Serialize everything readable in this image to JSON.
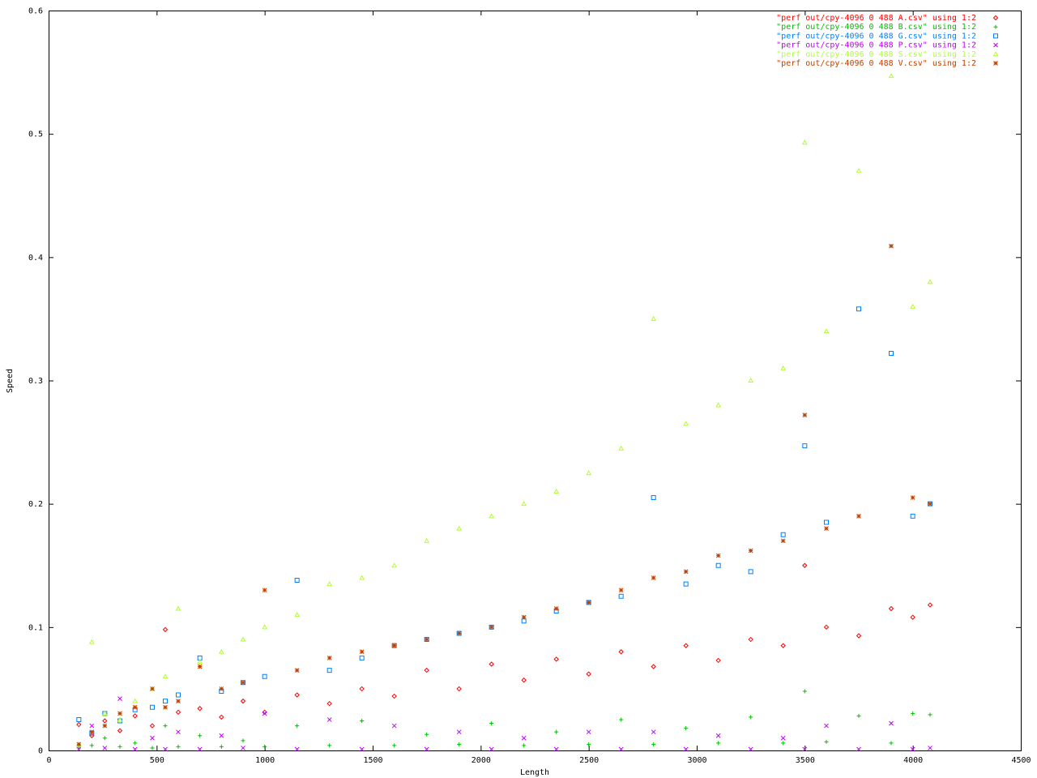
{
  "chart_data": {
    "type": "scatter",
    "xlabel": "Length",
    "ylabel": "Speed",
    "xlim": [
      0,
      4500
    ],
    "xticks": [
      0,
      500,
      1000,
      1500,
      2000,
      2500,
      3000,
      3500,
      4000,
      4500
    ],
    "ylim": [
      0,
      0.6
    ],
    "yticks": [
      0,
      0.1,
      0.2,
      0.3,
      0.4,
      0.5,
      0.6
    ],
    "legend": "top-right",
    "x": [
      140,
      200,
      260,
      330,
      400,
      480,
      540,
      600,
      700,
      800,
      900,
      1000,
      1150,
      1300,
      1450,
      1600,
      1750,
      1900,
      2050,
      2200,
      2350,
      2500,
      2650,
      2800,
      2950,
      3100,
      3250,
      3400,
      3500,
      3600,
      3750,
      3900,
      4000,
      4080
    ],
    "series": [
      {
        "name": "\"perf out/cpy-4096 0 488 A.csv\" using 1:2",
        "color": "#ff0000",
        "marker": "diamond",
        "values": [
          0.021,
          0.012,
          0.024,
          0.016,
          0.028,
          0.02,
          0.098,
          0.031,
          0.034,
          0.027,
          0.04,
          0.031,
          0.045,
          0.038,
          0.05,
          0.044,
          0.065,
          0.05,
          0.07,
          0.057,
          0.074,
          0.062,
          0.08,
          0.068,
          0.085,
          0.073,
          0.09,
          0.085,
          0.15,
          0.1,
          0.093,
          0.115,
          0.108,
          0.118
        ]
      },
      {
        "name": "\"perf out/cpy-4096 0 488 B.csv\" using 1:2",
        "color": "#00c000",
        "marker": "plus",
        "values": [
          0.002,
          0.004,
          0.01,
          0.003,
          0.006,
          0.002,
          0.02,
          0.003,
          0.012,
          0.003,
          0.008,
          0.003,
          0.02,
          0.004,
          0.024,
          0.004,
          0.013,
          0.005,
          0.022,
          0.004,
          0.015,
          0.005,
          0.025,
          0.005,
          0.018,
          0.006,
          0.027,
          0.006,
          0.048,
          0.007,
          0.028,
          0.006,
          0.03,
          0.029
        ]
      },
      {
        "name": "\"perf out/cpy-4096 0 488 G.csv\" using 1:2",
        "color": "#0080ff",
        "marker": "square",
        "values": [
          0.025,
          0.014,
          0.03,
          0.024,
          0.033,
          0.035,
          0.04,
          0.045,
          0.075,
          0.048,
          0.055,
          0.06,
          0.138,
          0.065,
          0.075,
          0.085,
          0.09,
          0.095,
          0.1,
          0.105,
          0.113,
          0.12,
          0.125,
          0.205,
          0.135,
          0.15,
          0.145,
          0.175,
          0.247,
          0.185,
          0.358,
          0.322,
          0.19,
          0.2
        ]
      },
      {
        "name": "\"perf out/cpy-4096 0 488 P.csv\" using 1:2",
        "color": "#c000ff",
        "marker": "cross",
        "values": [
          0.001,
          0.02,
          0.002,
          0.042,
          0.001,
          0.01,
          0.001,
          0.015,
          0.001,
          0.012,
          0.002,
          0.03,
          0.001,
          0.025,
          0.001,
          0.02,
          0.001,
          0.015,
          0.001,
          0.01,
          0.001,
          0.015,
          0.001,
          0.015,
          0.001,
          0.012,
          0.001,
          0.01,
          0.001,
          0.02,
          0.001,
          0.022,
          0.001,
          0.002
        ]
      },
      {
        "name": "\"perf out/cpy-4096 0 488 S.csv\" using 1:2",
        "color": "#b0ff30",
        "marker": "triangle",
        "values": [
          0.005,
          0.088,
          0.03,
          0.025,
          0.04,
          0.05,
          0.06,
          0.115,
          0.072,
          0.08,
          0.09,
          0.1,
          0.11,
          0.135,
          0.14,
          0.15,
          0.17,
          0.18,
          0.19,
          0.2,
          0.21,
          0.225,
          0.245,
          0.35,
          0.265,
          0.28,
          0.3,
          0.31,
          0.493,
          0.34,
          0.47,
          0.547,
          0.36,
          0.38
        ]
      },
      {
        "name": "\"perf out/cpy-4096 0 488 V.csv\" using 1:2",
        "color": "#c04000",
        "marker": "star",
        "values": [
          0.005,
          0.015,
          0.02,
          0.03,
          0.035,
          0.05,
          0.035,
          0.04,
          0.068,
          0.05,
          0.055,
          0.13,
          0.065,
          0.075,
          0.08,
          0.085,
          0.09,
          0.095,
          0.1,
          0.108,
          0.115,
          0.12,
          0.13,
          0.14,
          0.145,
          0.158,
          0.162,
          0.17,
          0.272,
          0.18,
          0.19,
          0.409,
          0.205,
          0.2
        ]
      }
    ]
  }
}
